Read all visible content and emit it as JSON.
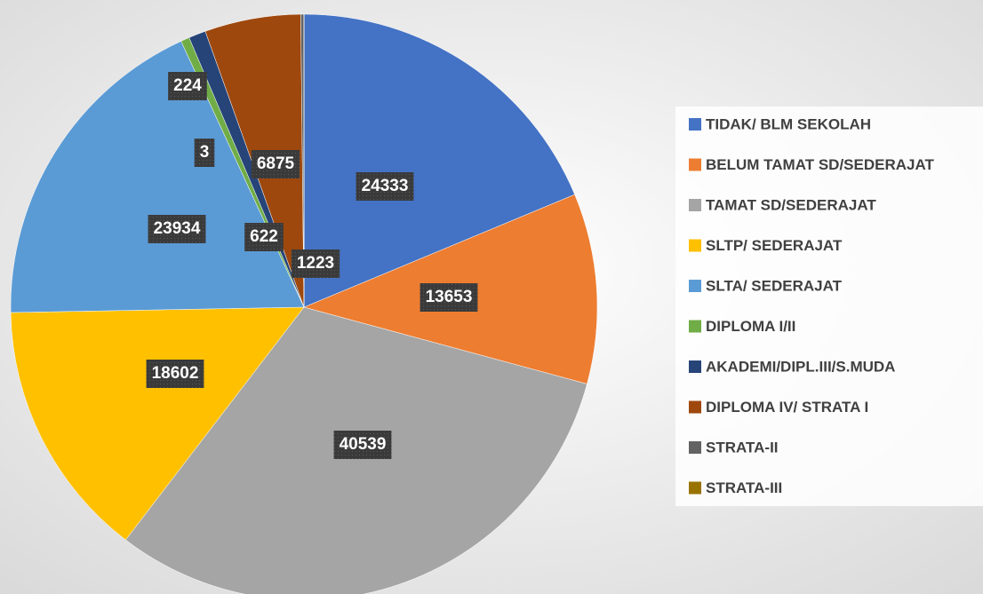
{
  "chart_data": {
    "type": "pie",
    "categories": [
      "TIDAK/ BLM SEKOLAH",
      "BELUM TAMAT SD/SEDERAJAT",
      "TAMAT SD/SEDERAJAT",
      "SLTP/ SEDERAJAT",
      "SLTA/ SEDERAJAT",
      "DIPLOMA I/II",
      "AKADEMI/DIPL.III/S.MUDA",
      "DIPLOMA IV/ STRATA I",
      "STRATA-II",
      "STRATA-III"
    ],
    "values": [
      24333,
      13653,
      40539,
      18602,
      23934,
      622,
      1223,
      6875,
      224,
      3
    ],
    "colors": [
      "#4472c4",
      "#ed7d31",
      "#a5a5a5",
      "#ffc000",
      "#5b9bd5",
      "#70ad47",
      "#264478",
      "#9e480e",
      "#636363",
      "#997300"
    ],
    "legend": "right"
  }
}
